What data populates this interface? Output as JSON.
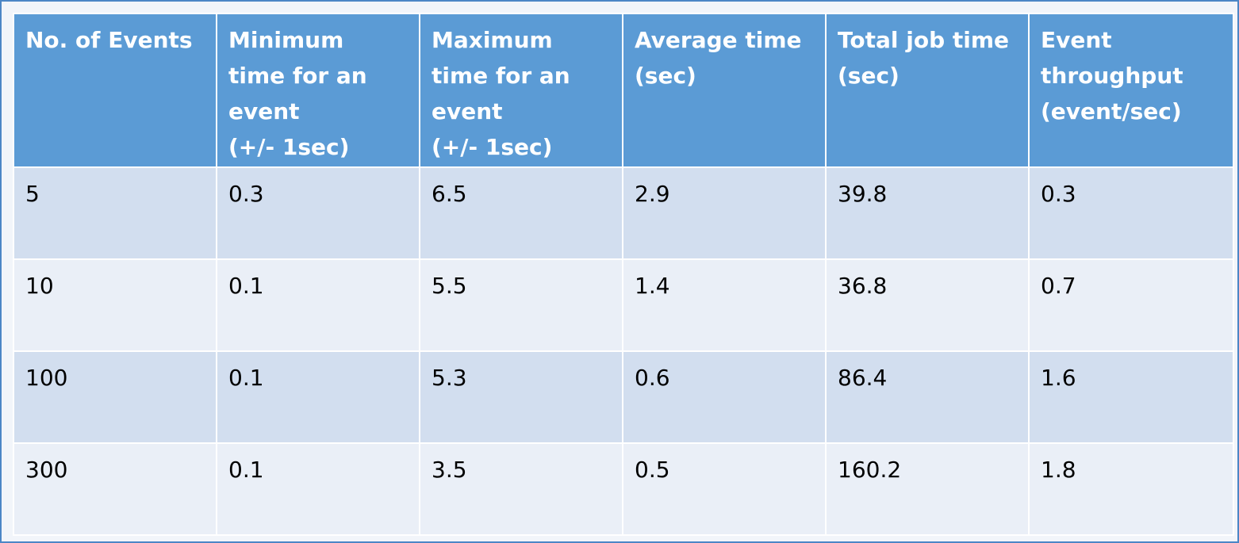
{
  "table": {
    "headers": [
      {
        "lines": [
          "No. of Events"
        ]
      },
      {
        "lines": [
          "Minimum",
          "time for an",
          "event",
          "(+/- 1sec)"
        ]
      },
      {
        "lines": [
          "Maximum",
          "time for an",
          "event",
          "(+/- 1sec)"
        ]
      },
      {
        "lines": [
          "Average time",
          "(sec)"
        ]
      },
      {
        "lines": [
          "Total job time",
          "(sec)"
        ]
      },
      {
        "lines": [
          "Event",
          "throughput",
          "(event/sec)"
        ]
      }
    ],
    "rows": [
      [
        "5",
        "0.3",
        "6.5",
        "2.9",
        "39.8",
        "0.3"
      ],
      [
        "10",
        "0.1",
        "5.5",
        "1.4",
        "36.8",
        "0.7"
      ],
      [
        "100",
        "0.1",
        "5.3",
        "0.6",
        "86.4",
        "1.6"
      ],
      [
        "300",
        "0.1",
        "3.5",
        "0.5",
        "160.2",
        "1.8"
      ]
    ]
  },
  "colors": {
    "header_bg": "#5b9bd5",
    "row_band_dark": "#d2deef",
    "row_band_light": "#eaeff7",
    "frame_border": "#4c86c6"
  }
}
